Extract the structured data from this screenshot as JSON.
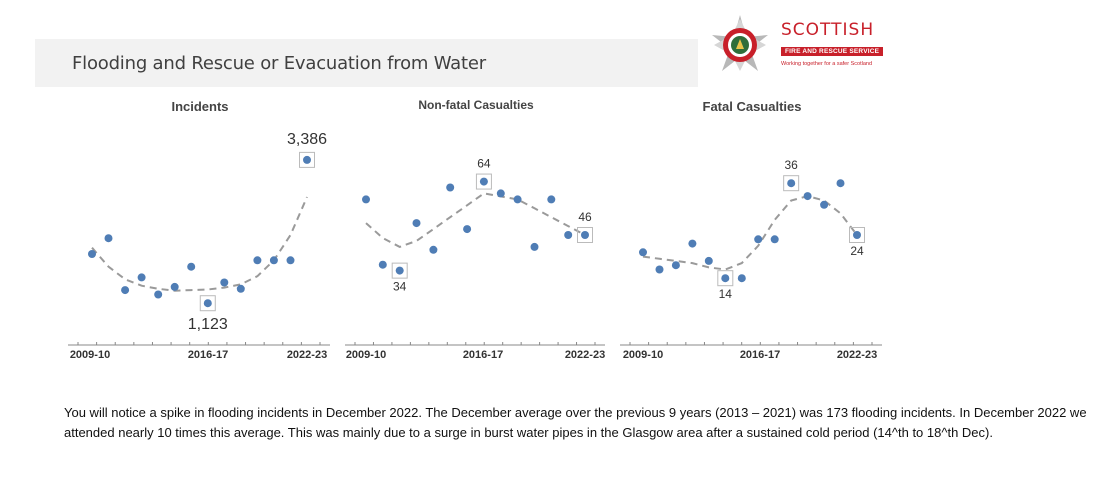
{
  "header": {
    "title": "Flooding and Rescue or Evacuation from Water"
  },
  "logo": {
    "name": "SCOTTISH",
    "band": "FIRE AND RESCUE SERVICE",
    "tagline": "Working together for a safer Scotland"
  },
  "colors": {
    "point": "#4f7db5",
    "trend": "#9a9a9a",
    "axis": "#888888",
    "logo_red": "#c8202a"
  },
  "chart_data": [
    {
      "type": "scatter",
      "title": "Incidents",
      "x": [
        "2009-10",
        "2010-11",
        "2011-12",
        "2012-13",
        "2013-14",
        "2014-15",
        "2015-16",
        "2016-17",
        "2017-18",
        "2018-19",
        "2019-20",
        "2020-21",
        "2021-22",
        "2022-23"
      ],
      "values": [
        1900,
        2150,
        1330,
        1530,
        1260,
        1380,
        1700,
        1123,
        1450,
        1350,
        1800,
        1800,
        1800,
        3386
      ],
      "trend": [
        2000,
        1700,
        1500,
        1400,
        1350,
        1320,
        1330,
        1340,
        1370,
        1420,
        1550,
        1800,
        2200,
        2800
      ],
      "labels": [
        {
          "index": 7,
          "text": "1,123",
          "pos": "below"
        },
        {
          "index": 13,
          "text": "3,386",
          "pos": "above"
        }
      ],
      "ylim": [
        700,
        3700
      ],
      "x_ticks": [
        "2009-10",
        "2016-17",
        "2022-23"
      ]
    },
    {
      "type": "scatter",
      "title": "Non-fatal Casualties",
      "x": [
        "2009-10",
        "2010-11",
        "2011-12",
        "2012-13",
        "2013-14",
        "2014-15",
        "2015-16",
        "2016-17",
        "2017-18",
        "2018-19",
        "2019-20",
        "2020-21",
        "2021-22",
        "2022-23"
      ],
      "values": [
        58,
        36,
        34,
        50,
        41,
        62,
        48,
        64,
        60,
        58,
        42,
        58,
        46,
        46
      ],
      "trend": [
        50,
        45,
        42,
        44,
        48,
        52,
        56,
        60,
        59,
        58,
        55,
        52,
        49,
        46
      ],
      "labels": [
        {
          "index": 2,
          "text": "34",
          "pos": "below"
        },
        {
          "index": 7,
          "text": "64",
          "pos": "above"
        },
        {
          "index": 13,
          "text": "46",
          "pos": "above"
        }
      ],
      "ylim": [
        14,
        78
      ],
      "x_ticks": [
        "2009-10",
        "2016-17",
        "2022-23"
      ]
    },
    {
      "type": "scatter",
      "title": "Fatal Casualties",
      "x": [
        "2009-10",
        "2010-11",
        "2011-12",
        "2012-13",
        "2013-14",
        "2014-15",
        "2015-16",
        "2016-17",
        "2017-18",
        "2018-19",
        "2019-20",
        "2020-21",
        "2021-22",
        "2022-23"
      ],
      "values": [
        20,
        16,
        17,
        22,
        18,
        14,
        14,
        23,
        23,
        36,
        33,
        31,
        36,
        24
      ],
      "trend": [
        19,
        18.5,
        18,
        17.5,
        16.5,
        16,
        17.5,
        21.5,
        27.5,
        32,
        33,
        32,
        29,
        24
      ],
      "labels": [
        {
          "index": 5,
          "text": "14",
          "pos": "below"
        },
        {
          "index": 9,
          "text": "36",
          "pos": "above"
        },
        {
          "index": 13,
          "text": "24",
          "pos": "below"
        }
      ],
      "ylim": [
        2,
        46
      ],
      "x_ticks": [
        "2009-10",
        "2016-17",
        "2022-23"
      ]
    }
  ],
  "note": {
    "text": "You will notice a spike in flooding incidents in December 2022.  The December average over the previous 9 years (2013 – 2021) was 173 flooding incidents.  In December 2022 we attended nearly 10 times this average. This was mainly due to a surge in burst water pipes in the Glasgow area after a sustained cold period (14^th to 18^th Dec)."
  }
}
